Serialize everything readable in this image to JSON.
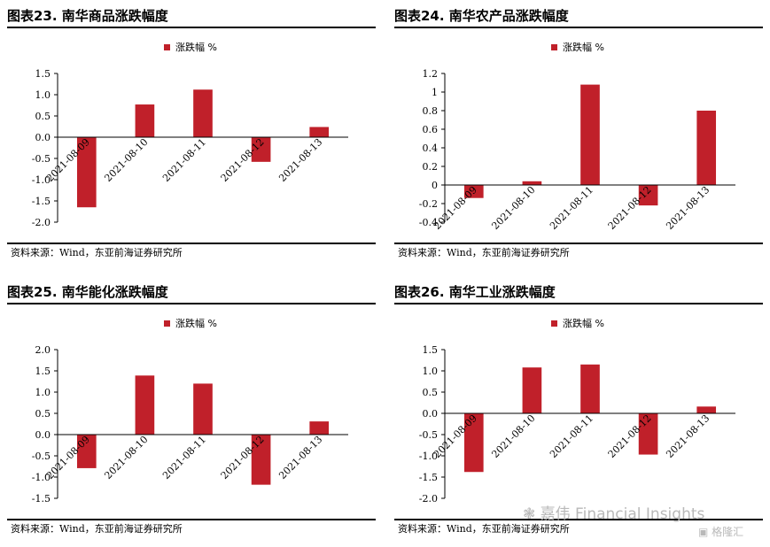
{
  "panels": [
    {
      "title": "图表23. 南华商品涨跌幅度",
      "source": "资料来源：Wind，东亚前海证券研究所"
    },
    {
      "title": "图表24. 南华农产品涨跌幅度",
      "source": "资料来源：Wind，东亚前海证券研究所"
    },
    {
      "title": "图表25. 南华能化涨跌幅度",
      "source": "资料来源：Wind，东亚前海证券研究所"
    },
    {
      "title": "图表26. 南华工业涨跌幅度",
      "source": "资料来源：Wind，东亚前海证券研究所"
    }
  ],
  "chart_data": [
    {
      "type": "bar",
      "categories": [
        "2021-08-09",
        "2021-08-10",
        "2021-08-11",
        "2021-08-12",
        "2021-08-13"
      ],
      "series": [
        {
          "name": "涨跌幅 %",
          "values": [
            -1.65,
            0.77,
            1.12,
            -0.58,
            0.24
          ],
          "color": "#c0202a"
        }
      ],
      "ylim": [
        -2.0,
        1.5
      ],
      "yticks": [
        -2.0,
        -1.5,
        -1.0,
        -0.5,
        0.0,
        0.5,
        1.0,
        1.5
      ],
      "ytick_decimals": 1,
      "legend": "top-center",
      "grid": false
    },
    {
      "type": "bar",
      "categories": [
        "2021-08-09",
        "2021-08-10",
        "2021-08-11",
        "2021-08-12",
        "2021-08-13"
      ],
      "series": [
        {
          "name": "涨跌幅 %",
          "values": [
            -0.14,
            0.04,
            1.08,
            -0.22,
            0.8
          ],
          "color": "#c0202a"
        }
      ],
      "ylim": [
        -0.4,
        1.2
      ],
      "yticks": [
        -0.4,
        -0.2,
        0,
        0.2,
        0.4,
        0.6,
        0.8,
        1.0,
        1.2
      ],
      "ytick_labels": [
        "-0.4",
        "-0.2",
        "0",
        "0.2",
        "0.4",
        "0.6",
        "0.8",
        "1",
        "1.2"
      ],
      "legend": "top-center",
      "grid": false
    },
    {
      "type": "bar",
      "categories": [
        "2021-08-09",
        "2021-08-10",
        "2021-08-11",
        "2021-08-12",
        "2021-08-13"
      ],
      "series": [
        {
          "name": "涨跌幅 %",
          "values": [
            -0.79,
            1.39,
            1.2,
            -1.18,
            0.31
          ],
          "color": "#c0202a"
        }
      ],
      "ylim": [
        -1.5,
        2.0
      ],
      "yticks": [
        -1.5,
        -1.0,
        -0.5,
        0.0,
        0.5,
        1.0,
        1.5,
        2.0
      ],
      "ytick_decimals": 1,
      "legend": "top-center",
      "grid": false
    },
    {
      "type": "bar",
      "categories": [
        "2021-08-09",
        "2021-08-10",
        "2021-08-11",
        "2021-08-12",
        "2021-08-13"
      ],
      "series": [
        {
          "name": "涨跌幅 %",
          "values": [
            -1.38,
            1.08,
            1.15,
            -0.97,
            0.16
          ],
          "color": "#c0202a"
        }
      ],
      "ylim": [
        -2.0,
        1.5
      ],
      "yticks": [
        -2.0,
        -1.5,
        -1.0,
        -0.5,
        0.0,
        0.5,
        1.0,
        1.5
      ],
      "ytick_decimals": 1,
      "legend": "top-center",
      "grid": false
    }
  ],
  "watermark": {
    "text": "嘉伟 Financial Insights",
    "logo_text": "格隆汇",
    "icon": "wechat-icon"
  }
}
